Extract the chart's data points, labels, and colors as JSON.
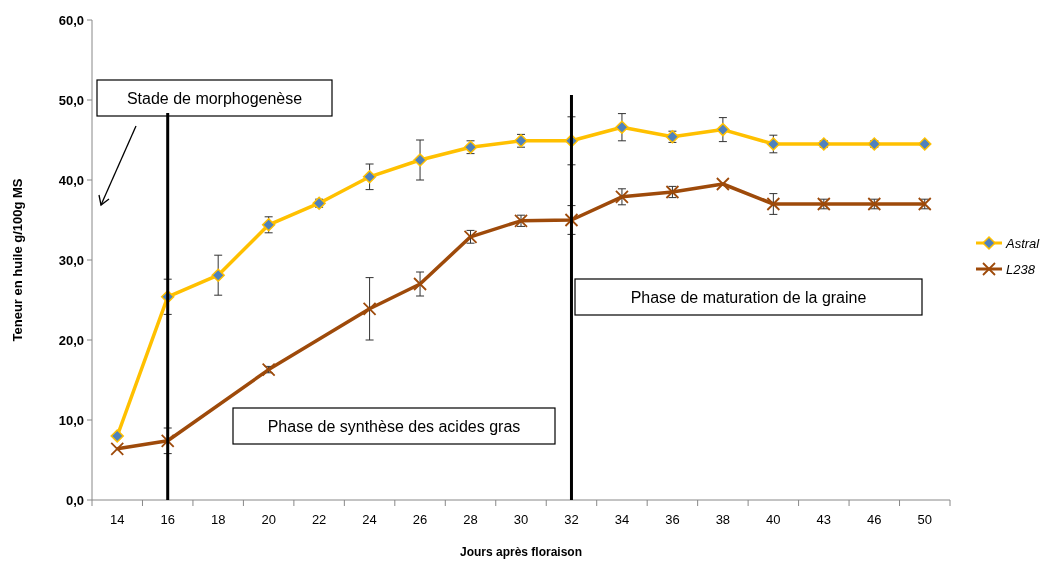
{
  "chart_data": {
    "type": "line",
    "xlabel": "Jours après floraison",
    "ylabel": "Teneur en huile g/100g MS",
    "categories": [
      "14",
      "16",
      "18",
      "20",
      "22",
      "24",
      "26",
      "28",
      "30",
      "32",
      "34",
      "36",
      "38",
      "40",
      "43",
      "46",
      "50"
    ],
    "ylim": [
      0,
      60
    ],
    "yticks": [
      {
        "value": 0,
        "label": "0,0"
      },
      {
        "value": 10,
        "label": "10,0"
      },
      {
        "value": 20,
        "label": "20,0"
      },
      {
        "value": 30,
        "label": "30,0"
      },
      {
        "value": 40,
        "label": "40,0"
      },
      {
        "value": 50,
        "label": "50,0"
      },
      {
        "value": 60,
        "label": "60,0"
      }
    ],
    "series": [
      {
        "name": "Astral",
        "color": "#ffc000",
        "marker": "diamond",
        "values": [
          8.0,
          25.4,
          28.1,
          34.4,
          37.1,
          40.4,
          42.5,
          44.1,
          44.9,
          44.9,
          46.6,
          45.4,
          46.3,
          44.5,
          44.5,
          44.5,
          44.5
        ],
        "errors": [
          null,
          2.2,
          2.5,
          1.0,
          0.5,
          1.6,
          2.5,
          0.8,
          0.8,
          3.0,
          1.7,
          0.7,
          1.5,
          1.1,
          0.4,
          0.4,
          null
        ]
      },
      {
        "name": "L238",
        "color": "#9e4a0a",
        "marker": "cross",
        "values": [
          6.4,
          7.4,
          null,
          16.3,
          null,
          23.9,
          27.0,
          32.9,
          34.9,
          35.0,
          37.9,
          38.5,
          39.5,
          37.0,
          37.0,
          37.0,
          37.0
        ],
        "errors": [
          null,
          1.6,
          null,
          0.4,
          null,
          3.9,
          1.5,
          0.8,
          0.7,
          1.8,
          1.0,
          0.7,
          null,
          1.3,
          0.6,
          0.6,
          0.6
        ]
      }
    ],
    "ref_lines": [
      {
        "axis": "x",
        "value": "16",
        "color": "#000000"
      },
      {
        "axis": "x",
        "value": "32",
        "color": "#000000"
      }
    ],
    "annotations": [
      "Stade de morphogenèse",
      "Phase de synthèse des acides gras",
      "Phase de maturation de la graine"
    ],
    "grid": false,
    "legend": "right"
  }
}
